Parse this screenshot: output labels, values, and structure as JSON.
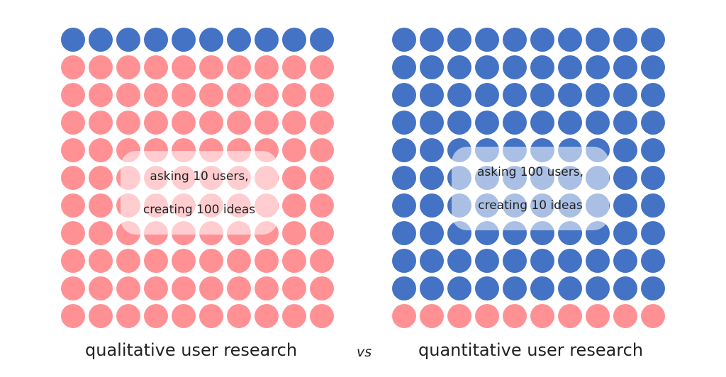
{
  "colors": {
    "blue": "#4472c4",
    "pink": "#ff9194"
  },
  "left": {
    "caption": "qualitative user research",
    "callout_line1": "asking 10 users,",
    "callout_line2": "creating 100 ideas",
    "grid": {
      "rows": 11,
      "cols": 10,
      "blue_rows": [
        0
      ],
      "pink_rows": [
        1,
        2,
        3,
        4,
        5,
        6,
        7,
        8,
        9,
        10
      ]
    }
  },
  "separator": "vs",
  "right": {
    "caption": "quantitative user research",
    "callout_line1": "asking 100 users,",
    "callout_line2": "creating 10 ideas",
    "grid": {
      "rows": 11,
      "cols": 10,
      "blue_rows": [
        0,
        1,
        2,
        3,
        4,
        5,
        6,
        7,
        8,
        9
      ],
      "pink_rows": [
        10
      ]
    }
  }
}
